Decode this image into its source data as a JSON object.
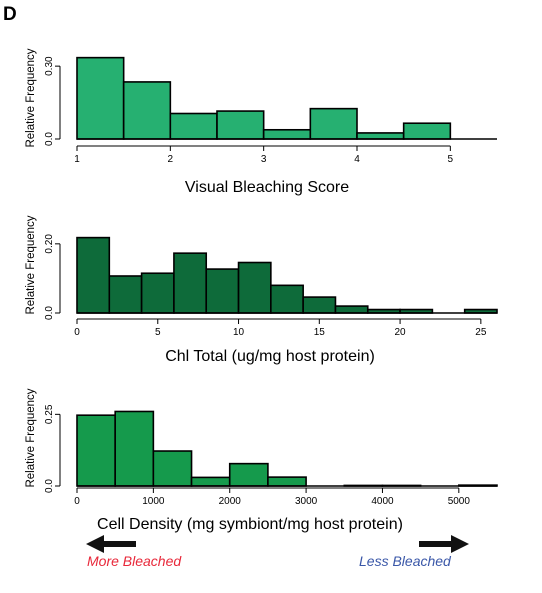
{
  "figure": {
    "panel_label": "D",
    "annotations": {
      "left": {
        "text": "More Bleached",
        "color": "#e8283a"
      },
      "right": {
        "text": "Less Bleached",
        "color": "#3a57a8"
      }
    }
  },
  "chart_data": [
    {
      "type": "bar",
      "histogram": true,
      "xlabel": "Visual Bleaching Score",
      "ylabel": "Relative Frequency",
      "bin_edges": [
        1.0,
        1.5,
        2.0,
        2.5,
        3.0,
        3.5,
        4.0,
        4.5,
        5.0,
        5.5
      ],
      "values": [
        0.335,
        0.235,
        0.105,
        0.115,
        0.038,
        0.125,
        0.025,
        0.065,
        0.0
      ],
      "xlim": [
        1,
        5.5
      ],
      "ylim": [
        0,
        0.35
      ],
      "xticks": [
        1,
        2,
        3,
        4,
        5
      ],
      "xtick_labels": [
        "1",
        "2",
        "3",
        "4",
        "5"
      ],
      "yticks": [
        0.0,
        0.3
      ],
      "ytick_labels": [
        "0.0",
        "0.30"
      ],
      "color": "#26b071"
    },
    {
      "type": "bar",
      "histogram": true,
      "xlabel": "Chl Total (ug/mg host protein)",
      "ylabel": "Relative Frequency",
      "bin_edges": [
        0,
        2,
        4,
        6,
        8,
        10,
        12,
        14,
        16,
        18,
        20,
        22,
        24,
        26
      ],
      "values": [
        0.218,
        0.107,
        0.115,
        0.173,
        0.127,
        0.146,
        0.08,
        0.046,
        0.02,
        0.01,
        0.01,
        0.0,
        0.01
      ],
      "xlim": [
        0,
        26
      ],
      "ylim": [
        0,
        0.24
      ],
      "xticks": [
        0,
        5,
        10,
        15,
        20,
        25
      ],
      "xtick_labels": [
        "0",
        "5",
        "10",
        "15",
        "20",
        "25"
      ],
      "yticks": [
        0.0,
        0.2
      ],
      "ytick_labels": [
        "0.0",
        "0.20"
      ],
      "color": "#0e6b3a"
    },
    {
      "type": "bar",
      "histogram": true,
      "xlabel": "Cell Density (mg symbiont/mg host protein)",
      "ylabel": "Relative Frequency",
      "bin_edges": [
        0,
        500,
        1000,
        1500,
        2000,
        2500,
        3000,
        3500,
        4000,
        4500,
        5000,
        5500
      ],
      "values": [
        0.247,
        0.26,
        0.122,
        0.03,
        0.078,
        0.031,
        0.0,
        0.002,
        0.002,
        0.0,
        0.003
      ],
      "xlim": [
        0,
        5500
      ],
      "ylim": [
        0,
        0.3
      ],
      "xticks": [
        0,
        1000,
        2000,
        3000,
        4000,
        5000
      ],
      "xtick_labels": [
        "0",
        "1000",
        "2000",
        "3000",
        "4000",
        "5000"
      ],
      "yticks": [
        0.0,
        0.25
      ],
      "ytick_labels": [
        "0.0",
        "0.25"
      ],
      "color": "#159a4c"
    }
  ]
}
